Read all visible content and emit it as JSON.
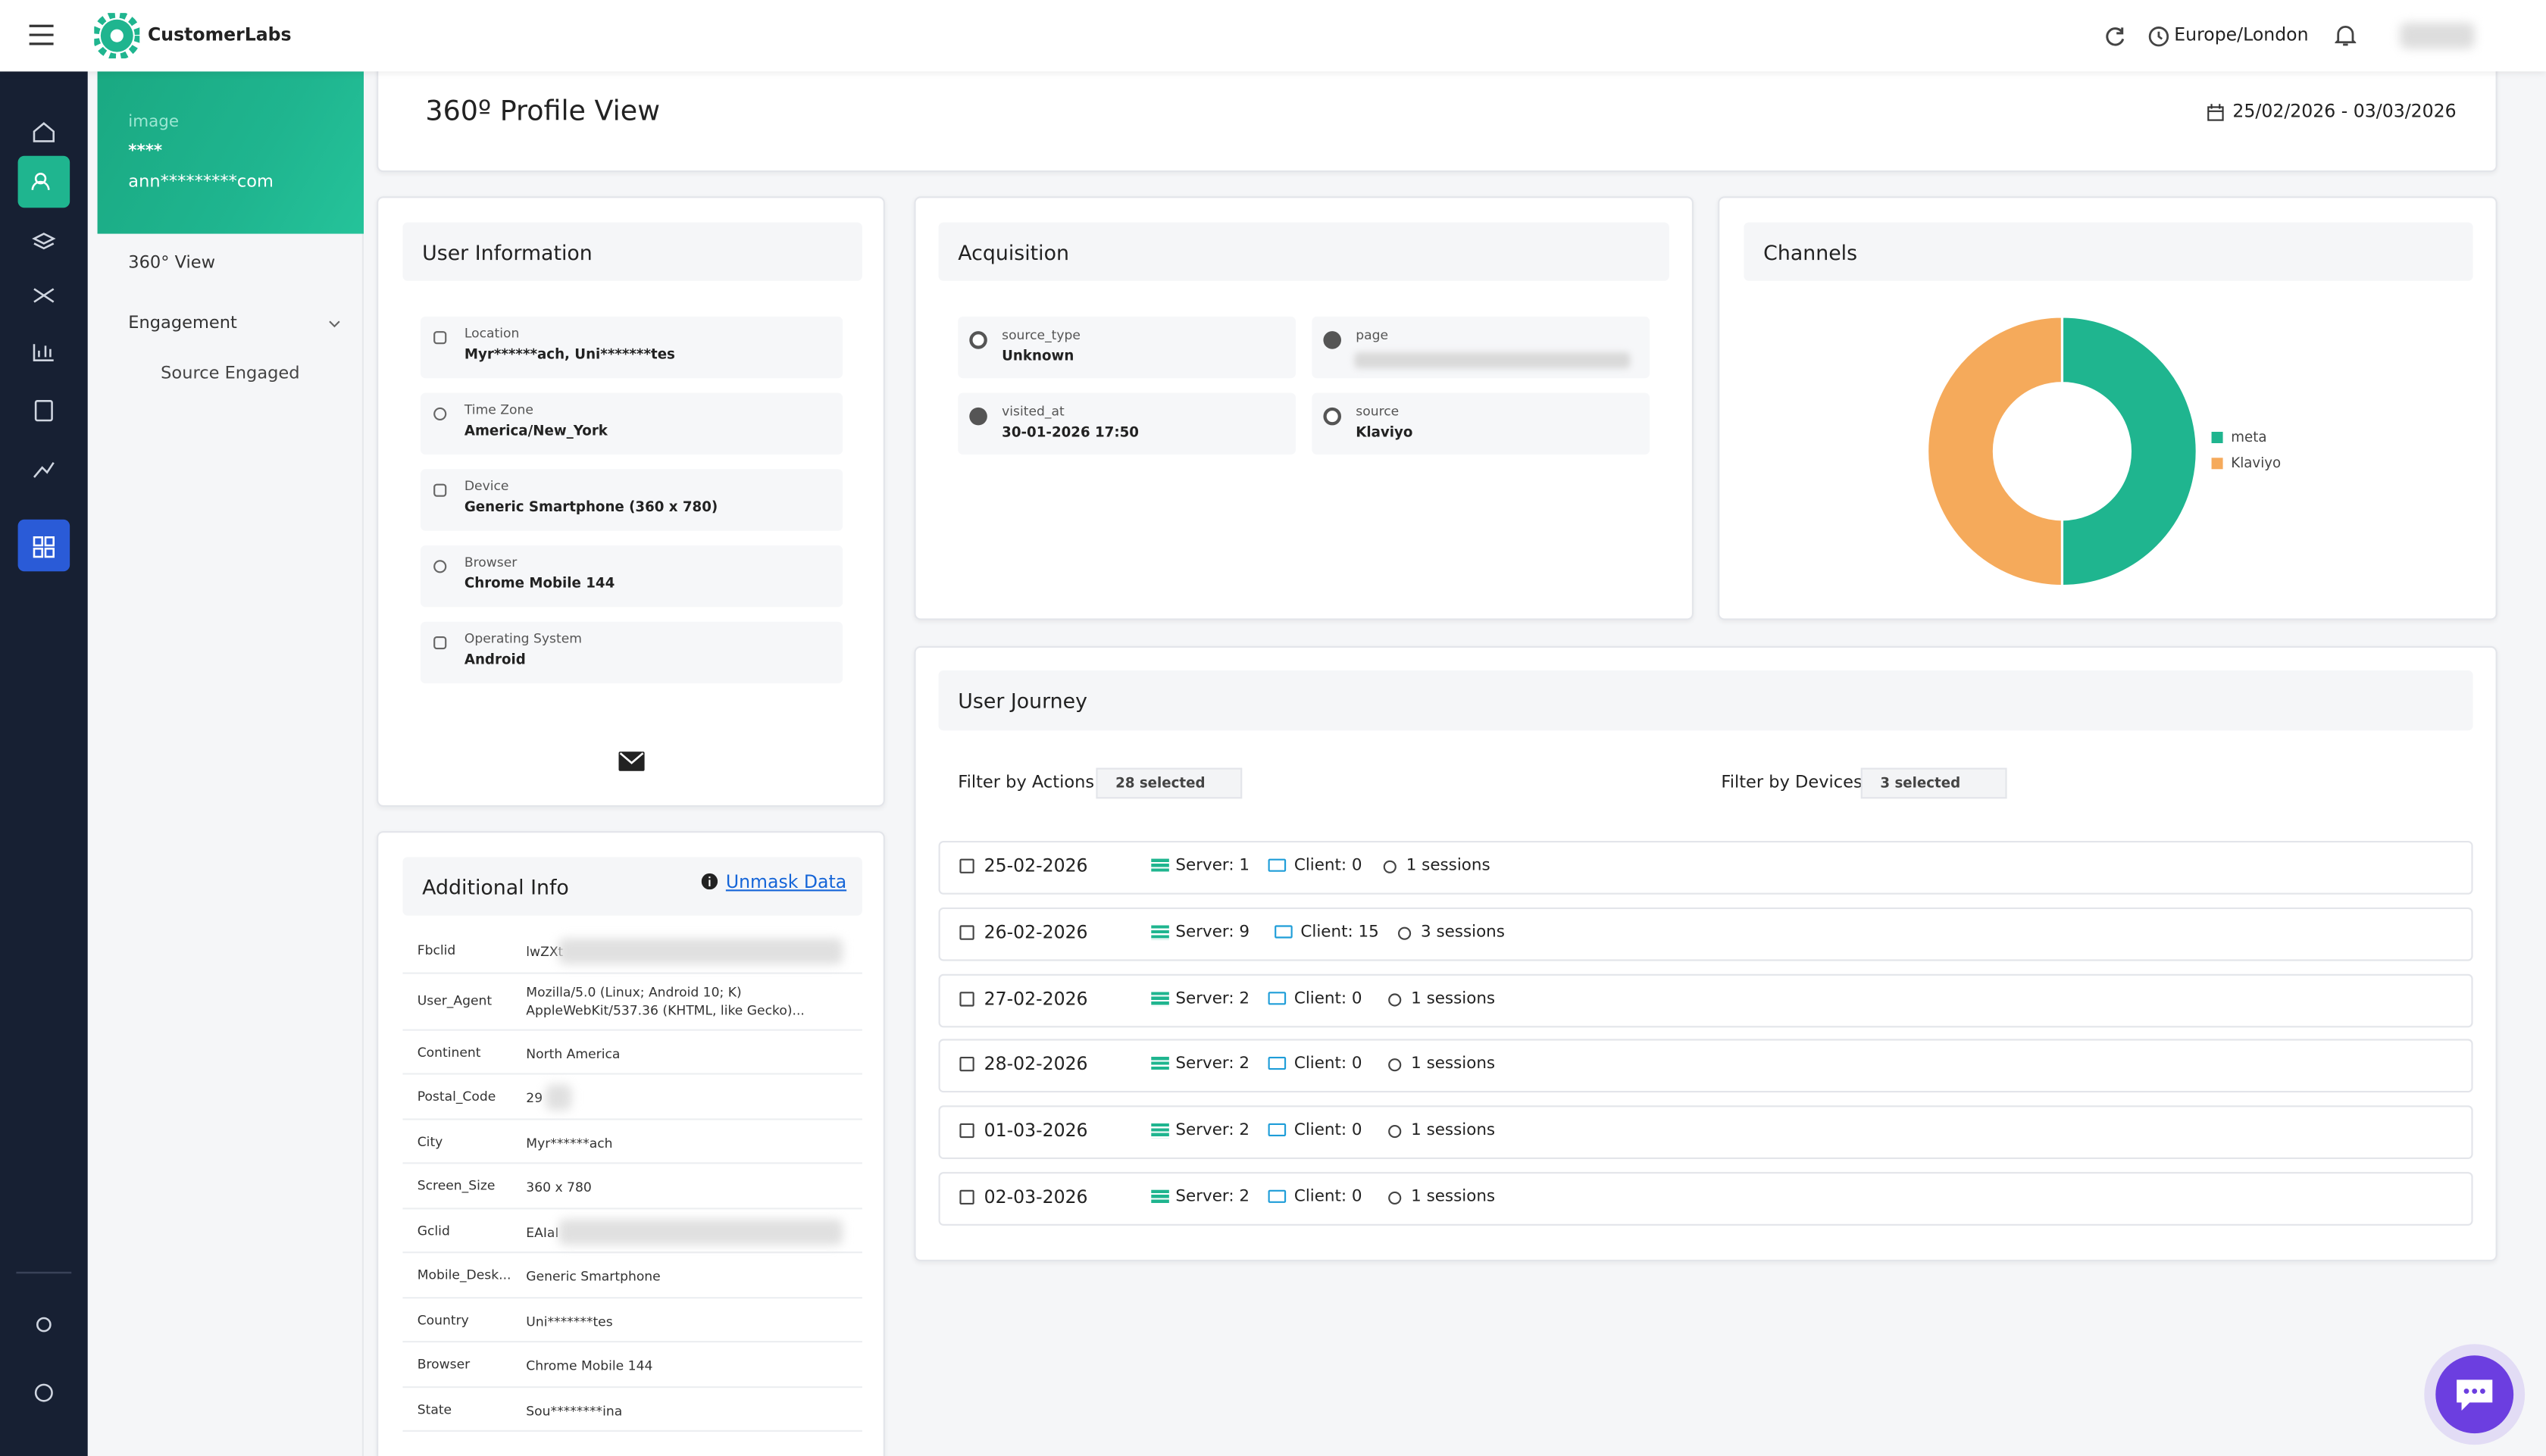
{
  "header": {
    "brand": "CustomerLabs",
    "timezone": "Europe/London"
  },
  "profile": {
    "image_alt": "image",
    "name": "****",
    "email": "ann*********com"
  },
  "nav": [
    "360° View",
    "Engagement",
    "Source Engaged"
  ],
  "page": {
    "title": "360º Profile View",
    "date_range": "25/02/2026 - 03/03/2026"
  },
  "user_info": {
    "title": "User Information",
    "items": [
      {
        "label": "Location",
        "value": "Myr******ach, Uni*******tes"
      },
      {
        "label": "Time Zone",
        "value": "America/New_York"
      },
      {
        "label": "Device",
        "value": "Generic Smartphone (360 x 780)"
      },
      {
        "label": "Browser",
        "value": "Chrome Mobile 144"
      },
      {
        "label": "Operating System",
        "value": "Android"
      }
    ]
  },
  "acquisition": {
    "title": "Acquisition",
    "items": [
      {
        "label": "source_type",
        "value": "Unknown"
      },
      {
        "label": "page"
      },
      {
        "label": "visited_at",
        "value": "30-01-2026 17:50"
      },
      {
        "label": "source",
        "value": "Klaviyo"
      }
    ]
  },
  "chart_data": {
    "type": "pie",
    "title": "Channels",
    "categories": [
      "meta",
      "Klaviyo"
    ],
    "values": [
      50,
      50
    ],
    "colors": [
      "#1fb58f",
      "#f5aa5b"
    ],
    "donut": true,
    "legend": "right"
  },
  "additional_info": {
    "title": "Additional Info",
    "link": "Unmask Data",
    "rows": [
      [
        "Fbclid",
        "lwZXt"
      ],
      [
        "User_Agent",
        "Mozilla/5.0 (Linux; Android 10; K) AppleWebKit/537.36 (KHTML, like Gecko)..."
      ],
      [
        "Continent",
        "North America"
      ],
      [
        "Postal_Code",
        "29"
      ],
      [
        "City",
        "Myr******ach"
      ],
      [
        "Screen_Size",
        "360 x 780"
      ],
      [
        "Gclid",
        "EAIaI"
      ],
      [
        "Mobile_Desk...",
        "Generic Smartphone"
      ],
      [
        "Country",
        "Uni*******tes"
      ],
      [
        "Browser",
        "Chrome Mobile 144"
      ],
      [
        "State",
        "Sou********ina"
      ]
    ]
  },
  "journey": {
    "title": "User Journey",
    "filters": [
      {
        "label": "Filter by Actions",
        "value": "28 selected"
      },
      {
        "label": "Filter by Devices",
        "value": "3 selected"
      }
    ],
    "days": [
      {
        "date": "25-02-2026",
        "server": "Server: 1",
        "client": "Client: 0",
        "sessions": "1 sessions"
      },
      {
        "date": "26-02-2026",
        "server": "Server: 9",
        "client": "Client: 15",
        "sessions": "3 sessions"
      },
      {
        "date": "27-02-2026",
        "server": "Server: 2",
        "client": "Client: 0",
        "sessions": "1 sessions"
      },
      {
        "date": "28-02-2026",
        "server": "Server: 2",
        "client": "Client: 0",
        "sessions": "1 sessions"
      },
      {
        "date": "01-03-2026",
        "server": "Server: 2",
        "client": "Client: 0",
        "sessions": "1 sessions"
      },
      {
        "date": "02-03-2026",
        "server": "Server: 2",
        "client": "Client: 0",
        "sessions": "1 sessions"
      }
    ]
  }
}
